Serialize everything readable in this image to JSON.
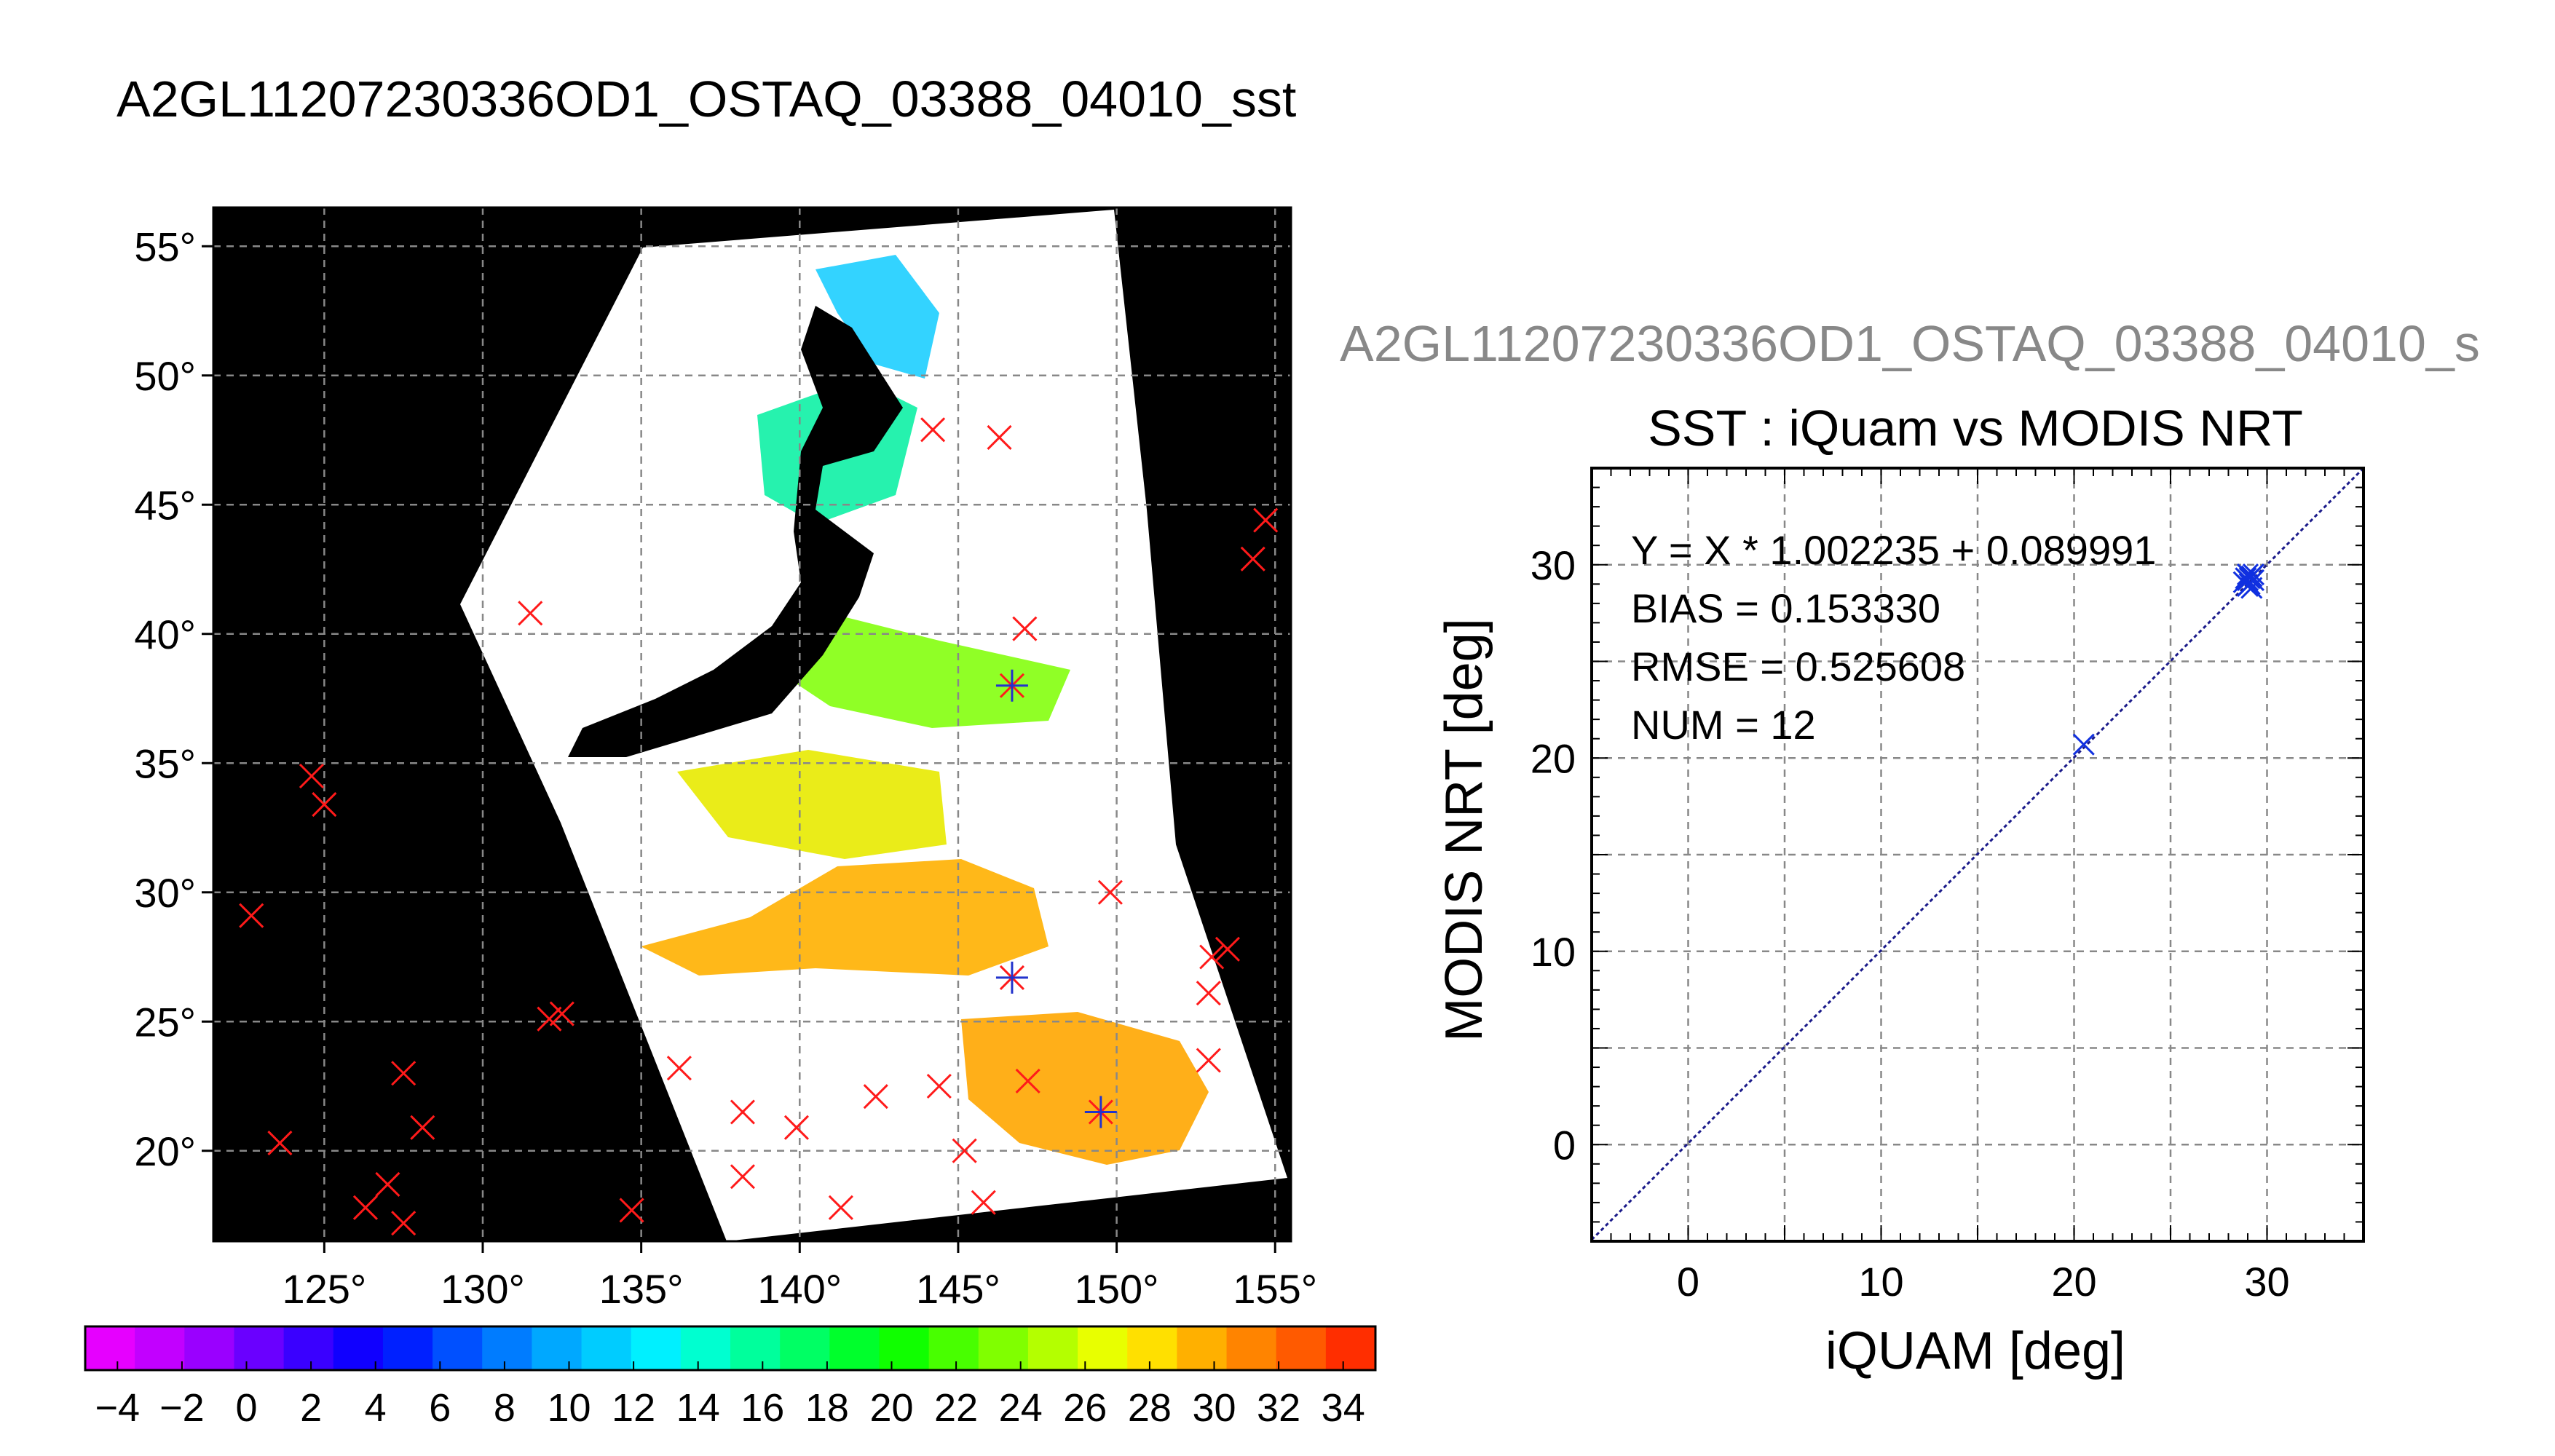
{
  "page_title": "A2GL11207230336OD1_OSTAQ_03388_04010_sst",
  "map": {
    "lon_ticks": [
      125,
      130,
      135,
      140,
      145,
      150,
      155
    ],
    "lat_ticks": [
      20,
      25,
      30,
      35,
      40,
      45,
      50,
      55
    ],
    "lon_range": [
      121.5,
      155.5
    ],
    "lat_range": [
      16.5,
      56.5
    ],
    "degree_symbol": "°",
    "colorbar": {
      "ticks": [
        -4,
        -2,
        0,
        2,
        4,
        6,
        8,
        10,
        12,
        14,
        16,
        18,
        20,
        22,
        24,
        26,
        28,
        30,
        32,
        34
      ],
      "range": [
        -5,
        35
      ],
      "colors": [
        "#e600ff",
        "#c200ff",
        "#9a00ff",
        "#6a00ff",
        "#3a00ff",
        "#1000ff",
        "#0020ff",
        "#0050ff",
        "#007cff",
        "#00a8ff",
        "#00ccff",
        "#00f0ff",
        "#00ffd0",
        "#00ff9c",
        "#00ff64",
        "#00ff2c",
        "#10ff00",
        "#48ff00",
        "#80ff00",
        "#b4ff00",
        "#e8ff00",
        "#ffe000",
        "#ffb000",
        "#ff8400",
        "#ff5a00",
        "#ff2e00"
      ]
    },
    "buoys_red": [
      [
        122.7,
        29.1
      ],
      [
        124.6,
        34.5
      ],
      [
        125.0,
        33.4
      ],
      [
        123.6,
        20.3
      ],
      [
        127.5,
        23.0
      ],
      [
        128.1,
        20.9
      ],
      [
        127.0,
        18.7
      ],
      [
        126.3,
        17.8
      ],
      [
        127.5,
        17.2
      ],
      [
        132.1,
        25.1
      ],
      [
        132.5,
        25.3
      ],
      [
        134.7,
        17.7
      ],
      [
        136.2,
        23.2
      ],
      [
        138.2,
        21.5
      ],
      [
        138.2,
        19.0
      ],
      [
        139.9,
        20.9
      ],
      [
        141.3,
        17.8
      ],
      [
        142.4,
        22.1
      ],
      [
        144.4,
        22.5
      ],
      [
        145.2,
        20.0
      ],
      [
        145.8,
        18.0
      ],
      [
        147.2,
        22.7
      ],
      [
        149.8,
        30.0
      ],
      [
        152.9,
        26.1
      ],
      [
        152.9,
        23.5
      ],
      [
        153.0,
        27.5
      ],
      [
        153.5,
        27.8
      ],
      [
        131.5,
        40.8
      ],
      [
        144.2,
        47.9
      ],
      [
        146.3,
        47.6
      ],
      [
        147.1,
        40.2
      ],
      [
        154.7,
        44.4
      ],
      [
        154.3,
        42.9
      ]
    ],
    "buoys_blue": [
      [
        146.7,
        38.0
      ],
      [
        146.7,
        26.7
      ],
      [
        149.5,
        21.5
      ]
    ]
  },
  "scatter": {
    "filename": "A2GL11207230336OD1_OSTAQ_03388_04010_s",
    "chart_data": {
      "type": "scatter",
      "title": "SST : iQuam vs MODIS NRT",
      "xlabel": "iQUAM [deg]",
      "ylabel": "MODIS NRT [deg]",
      "xlim": [
        -5,
        35
      ],
      "ylim": [
        -5,
        35
      ],
      "xticks": [
        0,
        10,
        20,
        30
      ],
      "yticks": [
        0,
        10,
        20,
        30
      ],
      "grid": true,
      "stats": {
        "line1": "Y = X * 1.002235 + 0.089991",
        "line2": "BIAS = 0.153330",
        "line3": "RMSE = 0.525608",
        "line4": "NUM = 12"
      },
      "fit": {
        "slope": 1.002235,
        "intercept": 0.089991
      },
      "points": [
        [
          20.5,
          20.7
        ],
        [
          28.9,
          29.3
        ],
        [
          29.0,
          29.5
        ],
        [
          29.1,
          29.0
        ],
        [
          29.2,
          29.4
        ],
        [
          29.0,
          28.9
        ],
        [
          29.3,
          29.2
        ],
        [
          28.8,
          29.1
        ],
        [
          29.1,
          29.3
        ],
        [
          29.2,
          28.8
        ],
        [
          29.0,
          29.2
        ],
        [
          29.3,
          29.5
        ]
      ]
    }
  }
}
